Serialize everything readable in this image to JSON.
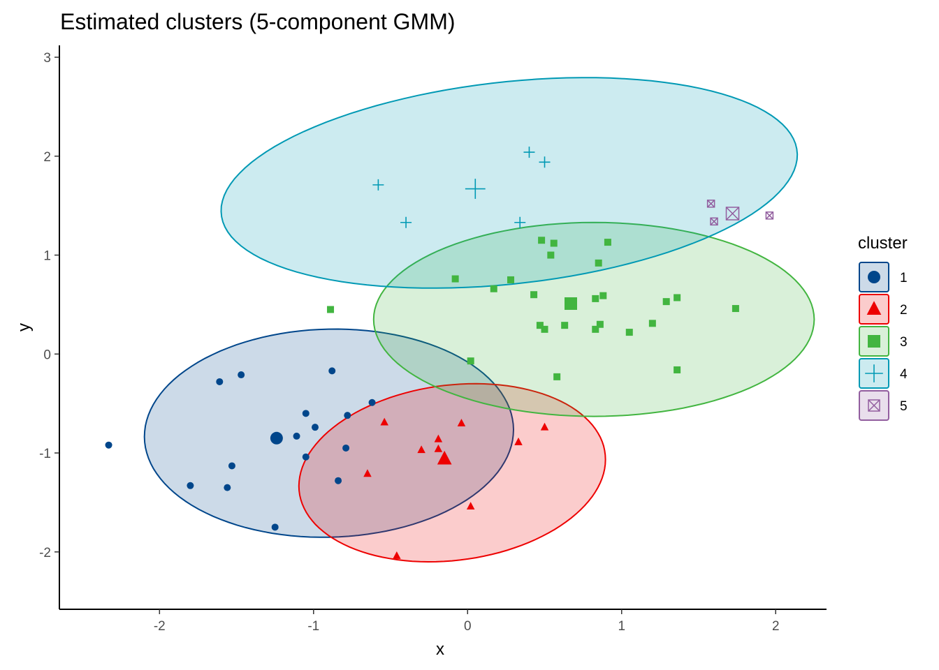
{
  "chart_data": {
    "type": "scatter",
    "title": "Estimated clusters (5-component GMM)",
    "xlabel": "x",
    "ylabel": "y",
    "xlim": [
      -2.65,
      2.33
    ],
    "ylim": [
      -2.58,
      3.12
    ],
    "xticks": [
      -2,
      -1,
      0,
      1,
      2
    ],
    "yticks": [
      -2,
      -1,
      0,
      1,
      2,
      3
    ],
    "grid": false,
    "legend": {
      "title": "cluster",
      "position": "right"
    },
    "series": [
      {
        "name": "1",
        "color": "#00468B",
        "fill": "#00468B",
        "shape": "circle",
        "center": [
          -1.24,
          -0.85
        ],
        "ellipse": {
          "center": [
            -0.9,
            -0.8
          ],
          "semi_axes": [
            1.2,
            1.05
          ],
          "angle_deg": 7
        },
        "points": [
          [
            -2.33,
            -0.92
          ],
          [
            -1.8,
            -1.33
          ],
          [
            -1.56,
            -1.35
          ],
          [
            -1.53,
            -1.13
          ],
          [
            -1.61,
            -0.28
          ],
          [
            -1.47,
            -0.21
          ],
          [
            -1.11,
            -0.83
          ],
          [
            -1.05,
            -0.6
          ],
          [
            -1.05,
            -1.04
          ],
          [
            -0.99,
            -0.74
          ],
          [
            -0.88,
            -0.17
          ],
          [
            -0.78,
            -0.62
          ],
          [
            -0.79,
            -0.95
          ],
          [
            -0.62,
            -0.49
          ],
          [
            -0.84,
            -1.28
          ],
          [
            -1.25,
            -1.75
          ]
        ]
      },
      {
        "name": "2",
        "color": "#ED0000",
        "fill": "#ED0000",
        "shape": "triangle",
        "center": [
          -0.15,
          -1.06
        ],
        "ellipse": {
          "center": [
            -0.1,
            -1.2
          ],
          "semi_axes": [
            1.03,
            0.86
          ],
          "angle_deg": 28
        },
        "points": [
          [
            -0.54,
            -0.69
          ],
          [
            -0.04,
            -0.7
          ],
          [
            -0.65,
            -1.21
          ],
          [
            -0.3,
            -0.97
          ],
          [
            -0.19,
            -0.86
          ],
          [
            -0.19,
            -0.96
          ],
          [
            0.33,
            -0.89
          ],
          [
            0.5,
            -0.74
          ],
          [
            0.02,
            -1.54
          ],
          [
            -0.46,
            -2.04
          ]
        ]
      },
      {
        "name": "3",
        "color": "#42B540",
        "fill": "#42B540",
        "shape": "square",
        "center": [
          0.67,
          0.51
        ],
        "ellipse": {
          "center": [
            0.82,
            0.35
          ],
          "semi_axes": [
            1.43,
            0.98
          ],
          "angle_deg": 0
        },
        "points": [
          [
            -0.89,
            0.45
          ],
          [
            -0.08,
            0.76
          ],
          [
            0.17,
            0.66
          ],
          [
            0.28,
            0.75
          ],
          [
            0.43,
            0.6
          ],
          [
            0.48,
            1.15
          ],
          [
            0.54,
            1.0
          ],
          [
            0.56,
            1.12
          ],
          [
            0.91,
            1.13
          ],
          [
            0.85,
            0.92
          ],
          [
            0.47,
            0.29
          ],
          [
            0.5,
            0.25
          ],
          [
            0.63,
            0.29
          ],
          [
            0.83,
            0.56
          ],
          [
            0.88,
            0.59
          ],
          [
            0.86,
            0.3
          ],
          [
            0.83,
            0.25
          ],
          [
            1.05,
            0.22
          ],
          [
            1.2,
            0.31
          ],
          [
            1.29,
            0.53
          ],
          [
            1.36,
            0.57
          ],
          [
            1.74,
            0.46
          ],
          [
            1.36,
            -0.16
          ],
          [
            0.58,
            -0.23
          ],
          [
            0.02,
            -0.07
          ]
        ]
      },
      {
        "name": "4",
        "color": "#0099B4",
        "fill": "#0099B4",
        "shape": "plus",
        "center": [
          0.05,
          1.67
        ],
        "ellipse": {
          "center": [
            0.27,
            1.73
          ],
          "semi_axes": [
            1.9,
            1.01
          ],
          "angle_deg": 12
        },
        "points": [
          [
            -0.58,
            1.71
          ],
          [
            -0.4,
            1.33
          ],
          [
            0.4,
            2.04
          ],
          [
            0.5,
            1.94
          ],
          [
            0.34,
            1.33
          ]
        ]
      },
      {
        "name": "5",
        "color": "#925E9F",
        "fill": "#925E9F",
        "shape": "square-cross",
        "center": [
          1.72,
          1.42
        ],
        "ellipse": null,
        "points": [
          [
            1.58,
            1.52
          ],
          [
            1.6,
            1.34
          ],
          [
            1.96,
            1.4
          ]
        ]
      }
    ]
  }
}
